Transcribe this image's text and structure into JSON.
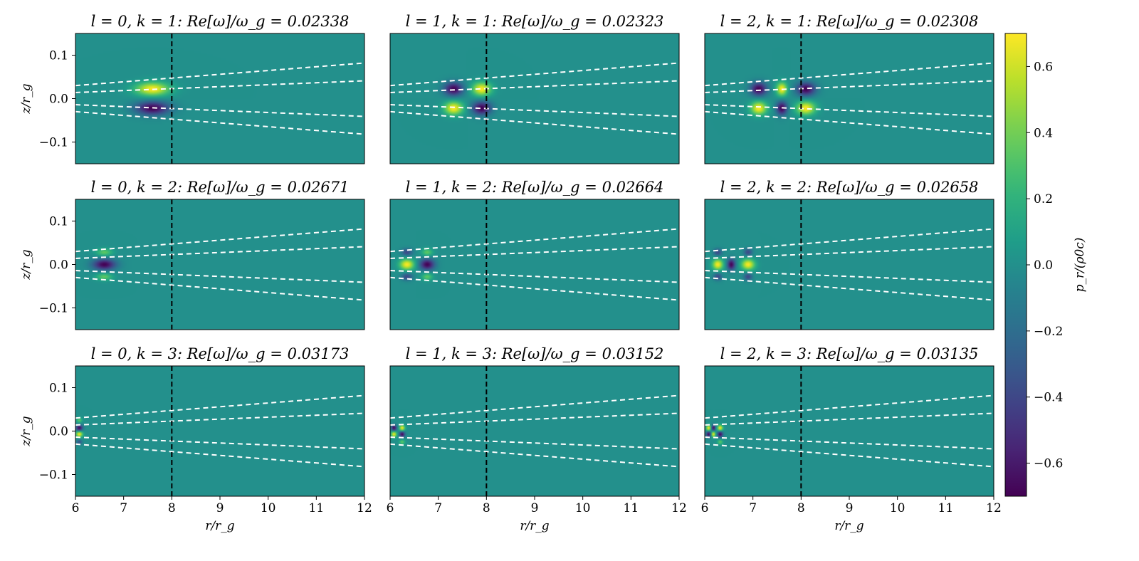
{
  "chart_data": {
    "type": "heatmap",
    "title": "",
    "xlabel": "r/r_g",
    "ylabel": "z/r_g",
    "xlim": [
      6,
      12
    ],
    "ylim": [
      -0.15,
      0.15
    ],
    "x_ticks": [
      "6",
      "7",
      "8",
      "9",
      "10",
      "11",
      "12"
    ],
    "y_ticks": [
      "0.1",
      "0.0",
      "−0.1"
    ],
    "colorbar": {
      "label": "p_r/(ρ0c)",
      "colormap": "viridis",
      "range": [
        -0.7,
        0.7
      ],
      "ticks": [
        "0.6",
        "0.4",
        "0.2",
        "0.0",
        "−0.2",
        "−0.4",
        "−0.6"
      ]
    },
    "vertical_marker": {
      "x": 8,
      "color": "#000000",
      "style": "dashed"
    },
    "dashed_lines": {
      "color": "#ffffff",
      "style": "dashed",
      "lines": [
        {
          "from": [
            6,
            0.03
          ],
          "to": [
            12,
            0.082
          ]
        },
        {
          "from": [
            6,
            0.014
          ],
          "to": [
            12,
            0.041
          ]
        },
        {
          "from": [
            6,
            -0.014
          ],
          "to": [
            12,
            -0.041
          ]
        },
        {
          "from": [
            6,
            -0.03
          ],
          "to": [
            12,
            -0.082
          ]
        }
      ]
    },
    "panels": [
      {
        "l": 0,
        "k": 1,
        "title": "l = 0, k = 1: Re[ω]/ω_g = 0.02338",
        "value": 0.02338,
        "blobs": [
          {
            "r": 7.6,
            "z": 0.022,
            "amp": 0.7,
            "sr": 0.25,
            "sz": 0.011
          },
          {
            "r": 7.6,
            "z": -0.022,
            "amp": -0.7,
            "sr": 0.25,
            "sz": 0.011
          }
        ]
      },
      {
        "l": 1,
        "k": 1,
        "title": "l = 1, k = 1: Re[ω]/ω_g = 0.02323",
        "value": 0.02323,
        "blobs": [
          {
            "r": 7.32,
            "z": 0.022,
            "amp": -0.7,
            "sr": 0.14,
            "sz": 0.011
          },
          {
            "r": 7.9,
            "z": 0.022,
            "amp": 0.7,
            "sr": 0.14,
            "sz": 0.011
          },
          {
            "r": 7.32,
            "z": -0.022,
            "amp": 0.7,
            "sr": 0.14,
            "sz": 0.011
          },
          {
            "r": 7.9,
            "z": -0.022,
            "amp": -0.7,
            "sr": 0.14,
            "sz": 0.011
          }
        ]
      },
      {
        "l": 2,
        "k": 1,
        "title": "l = 2, k = 1: Re[ω]/ω_g = 0.02308",
        "value": 0.02308,
        "blobs": [
          {
            "r": 7.12,
            "z": 0.022,
            "amp": -0.7,
            "sr": 0.12,
            "sz": 0.011
          },
          {
            "r": 7.6,
            "z": 0.022,
            "amp": 0.7,
            "sr": 0.08,
            "sz": 0.011
          },
          {
            "r": 8.1,
            "z": 0.022,
            "amp": -0.7,
            "sr": 0.14,
            "sz": 0.011
          },
          {
            "r": 7.12,
            "z": -0.022,
            "amp": 0.7,
            "sr": 0.12,
            "sz": 0.011
          },
          {
            "r": 7.6,
            "z": -0.022,
            "amp": -0.7,
            "sr": 0.08,
            "sz": 0.011
          },
          {
            "r": 8.1,
            "z": -0.022,
            "amp": 0.7,
            "sr": 0.14,
            "sz": 0.011
          }
        ]
      },
      {
        "l": 0,
        "k": 2,
        "title": "l = 0, k = 2: Re[ω]/ω_g = 0.02671",
        "value": 0.02671,
        "blobs": [
          {
            "r": 6.6,
            "z": 0.0,
            "amp": -0.7,
            "sr": 0.17,
            "sz": 0.009
          },
          {
            "r": 6.6,
            "z": 0.028,
            "amp": 0.35,
            "sr": 0.12,
            "sz": 0.006
          },
          {
            "r": 6.6,
            "z": -0.028,
            "amp": 0.35,
            "sr": 0.12,
            "sz": 0.006
          }
        ]
      },
      {
        "l": 1,
        "k": 2,
        "title": "l = 1, k = 2: Re[ω]/ω_g = 0.02664",
        "value": 0.02664,
        "blobs": [
          {
            "r": 6.35,
            "z": 0.0,
            "amp": 0.7,
            "sr": 0.11,
            "sz": 0.009
          },
          {
            "r": 6.77,
            "z": 0.0,
            "amp": -0.7,
            "sr": 0.11,
            "sz": 0.009
          },
          {
            "r": 6.35,
            "z": 0.028,
            "amp": -0.4,
            "sr": 0.08,
            "sz": 0.006
          },
          {
            "r": 6.77,
            "z": 0.028,
            "amp": 0.35,
            "sr": 0.08,
            "sz": 0.006
          },
          {
            "r": 6.35,
            "z": -0.028,
            "amp": -0.4,
            "sr": 0.08,
            "sz": 0.006
          },
          {
            "r": 6.77,
            "z": -0.028,
            "amp": 0.35,
            "sr": 0.08,
            "sz": 0.006
          }
        ]
      },
      {
        "l": 2,
        "k": 2,
        "title": "l = 2, k = 2: Re[ω]/ω_g = 0.02658",
        "value": 0.02658,
        "blobs": [
          {
            "r": 6.27,
            "z": 0.0,
            "amp": 0.7,
            "sr": 0.08,
            "sz": 0.009
          },
          {
            "r": 6.55,
            "z": 0.0,
            "amp": -0.7,
            "sr": 0.06,
            "sz": 0.009
          },
          {
            "r": 6.9,
            "z": 0.0,
            "amp": 0.7,
            "sr": 0.1,
            "sz": 0.009
          },
          {
            "r": 6.27,
            "z": 0.028,
            "amp": -0.4,
            "sr": 0.06,
            "sz": 0.006
          },
          {
            "r": 6.9,
            "z": 0.028,
            "amp": -0.4,
            "sr": 0.06,
            "sz": 0.006
          },
          {
            "r": 6.27,
            "z": -0.028,
            "amp": -0.4,
            "sr": 0.06,
            "sz": 0.006
          },
          {
            "r": 6.9,
            "z": -0.028,
            "amp": -0.4,
            "sr": 0.06,
            "sz": 0.006
          }
        ]
      },
      {
        "l": 0,
        "k": 3,
        "title": "l = 0, k = 3: Re[ω]/ω_g = 0.03173",
        "value": 0.03173,
        "blobs": [
          {
            "r": 6.08,
            "z": 0.007,
            "amp": -0.7,
            "sr": 0.05,
            "sz": 0.005
          },
          {
            "r": 6.08,
            "z": -0.007,
            "amp": 0.7,
            "sr": 0.05,
            "sz": 0.005
          },
          {
            "r": 6.08,
            "z": 0.025,
            "amp": 0.35,
            "sr": 0.04,
            "sz": 0.004
          },
          {
            "r": 6.08,
            "z": -0.025,
            "amp": -0.35,
            "sr": 0.04,
            "sz": 0.004
          }
        ]
      },
      {
        "l": 1,
        "k": 3,
        "title": "l = 1, k = 3: Re[ω]/ω_g = 0.03152",
        "value": 0.03152,
        "blobs": [
          {
            "r": 6.08,
            "z": 0.007,
            "amp": -0.7,
            "sr": 0.04,
            "sz": 0.005
          },
          {
            "r": 6.25,
            "z": 0.007,
            "amp": 0.7,
            "sr": 0.04,
            "sz": 0.005
          },
          {
            "r": 6.08,
            "z": -0.007,
            "amp": 0.7,
            "sr": 0.04,
            "sz": 0.005
          },
          {
            "r": 6.25,
            "z": -0.007,
            "amp": -0.7,
            "sr": 0.04,
            "sz": 0.005
          },
          {
            "r": 6.25,
            "z": -0.025,
            "amp": 0.35,
            "sr": 0.04,
            "sz": 0.004
          }
        ]
      },
      {
        "l": 2,
        "k": 3,
        "title": "l = 2, k = 3: Re[ω]/ω_g = 0.03135",
        "value": 0.03135,
        "blobs": [
          {
            "r": 6.08,
            "z": 0.007,
            "amp": 0.7,
            "sr": 0.035,
            "sz": 0.005
          },
          {
            "r": 6.18,
            "z": 0.007,
            "amp": -0.7,
            "sr": 0.03,
            "sz": 0.005
          },
          {
            "r": 6.32,
            "z": 0.007,
            "amp": 0.7,
            "sr": 0.04,
            "sz": 0.005
          },
          {
            "r": 6.08,
            "z": -0.007,
            "amp": -0.7,
            "sr": 0.035,
            "sz": 0.005
          },
          {
            "r": 6.18,
            "z": -0.007,
            "amp": 0.7,
            "sr": 0.03,
            "sz": 0.005
          },
          {
            "r": 6.32,
            "z": -0.007,
            "amp": -0.7,
            "sr": 0.04,
            "sz": 0.005
          },
          {
            "r": 6.32,
            "z": -0.025,
            "amp": 0.35,
            "sr": 0.04,
            "sz": 0.004
          }
        ]
      }
    ]
  }
}
